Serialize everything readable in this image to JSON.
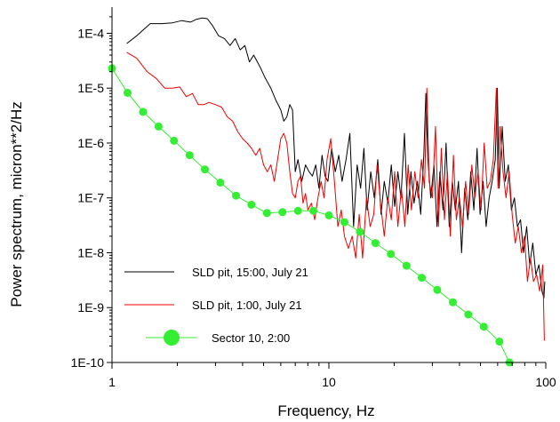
{
  "chart_data": {
    "type": "line",
    "title": "",
    "xlabel": "Frequency, Hz",
    "ylabel": "Power spectrum, micron**2/Hz",
    "xscale": "log",
    "yscale": "log",
    "xlim": [
      1,
      100
    ],
    "ylim": [
      1e-10,
      0.0003
    ],
    "x_ticks": [
      {
        "value": 1,
        "label": "1"
      },
      {
        "value": 10,
        "label": "10"
      },
      {
        "value": 100,
        "label": "100"
      }
    ],
    "y_ticks": [
      {
        "value": 0.0001,
        "label": "1E-4"
      },
      {
        "value": 1e-05,
        "label": "1E-5"
      },
      {
        "value": 1e-06,
        "label": "1E-6"
      },
      {
        "value": 1e-07,
        "label": "1E-7"
      },
      {
        "value": 1e-08,
        "label": "1E-8"
      },
      {
        "value": 1e-09,
        "label": "1E-9"
      },
      {
        "value": 1e-10,
        "label": "1E-10"
      }
    ],
    "grid": false,
    "legend": "bottom-left",
    "series": [
      {
        "name": "SLD pit, 15:00, July 21",
        "color": "#000000",
        "marker": "none",
        "x": [
          1.17,
          1.3,
          1.5,
          1.7,
          1.9,
          2.1,
          2.3,
          2.45,
          2.6,
          2.75,
          2.9,
          3.1,
          3.3,
          3.5,
          3.7,
          3.9,
          4.1,
          4.3,
          4.5,
          4.8,
          5.1,
          5.4,
          5.7,
          6.0,
          6.2,
          6.4,
          6.6,
          6.8,
          7.0,
          7.2,
          7.5,
          7.8,
          8.1,
          8.4,
          8.7,
          9.0,
          9.3,
          9.6,
          9.9,
          10.3,
          10.7,
          11.1,
          11.5,
          12.0,
          12.5,
          13.0,
          13.5,
          14.0,
          14.5,
          15.0,
          15.6,
          16.2,
          16.8,
          17.4,
          18.0,
          18.7,
          19.4,
          20.1,
          20.8,
          21.5,
          22.3,
          23.1,
          23.9,
          24.7,
          25.6,
          26.5,
          27.4,
          28.0,
          28.6,
          29.5,
          30.5,
          31.5,
          32.5,
          33.6,
          34.7,
          35.9,
          37.1,
          38.3,
          39.6,
          40.9,
          42.3,
          43.7,
          45.1,
          46.6,
          48.2,
          49.8,
          51.4,
          53.1,
          54.8,
          56.6,
          58.5,
          59.8,
          61.0,
          63.0,
          65.0,
          67.2,
          69.4,
          71.7,
          74.0,
          76.5,
          79.0,
          81.6,
          84.3,
          87.1,
          90.0,
          93.0,
          96.0,
          98.0,
          99.0
        ],
        "y": [
          6.5e-05,
          9e-05,
          0.00015,
          0.00015,
          0.000155,
          0.00017,
          0.00016,
          0.00018,
          0.00019,
          0.000185,
          0.00014,
          9e-05,
          8e-05,
          6e-05,
          8e-05,
          5e-05,
          6e-05,
          3e-05,
          4e-05,
          2.5e-05,
          1.5e-05,
          1e-05,
          6e-06,
          4e-06,
          2.5e-06,
          3e-06,
          5e-06,
          4e-06,
          3e-07,
          5e-07,
          2e-07,
          4e-07,
          3e-07,
          2.5e-07,
          4e-07,
          1.5e-07,
          6e-07,
          2.5e-07,
          2e-07,
          8e-07,
          3e-07,
          6e-07,
          2e-07,
          5e-07,
          1.5e-06,
          3e-08,
          4e-07,
          1.5e-07,
          8e-07,
          6e-08,
          3e-07,
          1e-07,
          5e-07,
          5e-08,
          2e-07,
          8e-08,
          4e-07,
          7e-08,
          3e-07,
          1e-07,
          1.5e-06,
          5e-08,
          3e-07,
          8e-08,
          2e-07,
          5e-08,
          6e-07,
          8e-06,
          5e-07,
          1e-07,
          4e-07,
          3e-08,
          3e-07,
          6e-08,
          1e-06,
          3e-08,
          2e-07,
          6e-08,
          2e-07,
          1e-08,
          1.5e-07,
          4e-08,
          3e-07,
          6e-08,
          8e-07,
          5e-08,
          2e-07,
          3e-08,
          1e-07,
          2e-07,
          5e-07,
          1e-05,
          1.5e-07,
          2e-06,
          2e-07,
          4e-07,
          6e-08,
          1e-07,
          3e-08,
          4e-08,
          1e-08,
          3e-08,
          6e-09,
          1.5e-08,
          4e-09,
          6e-09,
          2e-09,
          1.5e-09,
          3e-09
        ]
      },
      {
        "name": "SLD pit, 1:00, July 21",
        "color": "#ee0000",
        "marker": "none",
        "x": [
          1.17,
          1.3,
          1.45,
          1.6,
          1.75,
          1.9,
          2.05,
          2.2,
          2.35,
          2.5,
          2.65,
          2.8,
          3.0,
          3.2,
          3.4,
          3.6,
          3.8,
          4.0,
          4.2,
          4.4,
          4.6,
          4.8,
          5.0,
          5.2,
          5.4,
          5.6,
          5.8,
          6.0,
          6.2,
          6.4,
          6.6,
          6.8,
          7.0,
          7.2,
          7.4,
          7.6,
          7.8,
          8.0,
          8.3,
          8.6,
          8.9,
          9.2,
          9.5,
          9.8,
          10.2,
          10.6,
          11.0,
          11.4,
          11.8,
          12.3,
          12.8,
          13.3,
          13.8,
          14.3,
          14.9,
          15.5,
          16.1,
          16.7,
          17.3,
          18.0,
          18.7,
          19.4,
          20.1,
          20.8,
          21.6,
          22.4,
          23.2,
          24.0,
          24.9,
          25.8,
          26.7,
          27.6,
          28.3,
          29.0,
          30.0,
          31.0,
          32.0,
          33.0,
          34.1,
          35.2,
          36.3,
          37.5,
          38.7,
          40.0,
          41.3,
          42.7,
          44.1,
          45.6,
          47.1,
          48.7,
          50.3,
          52.0,
          53.7,
          55.5,
          57.3,
          59.2,
          60.2,
          61.5,
          63.5,
          65.6,
          67.8,
          70.0,
          72.3,
          74.7,
          77.2,
          79.7,
          82.3,
          85.0,
          87.8,
          90.7,
          93.7,
          96.8,
          98.5
        ],
        "y": [
          4.5e-05,
          3.5e-05,
          2e-05,
          1.5e-05,
          1e-05,
          1e-05,
          1.05e-05,
          7e-06,
          8e-06,
          5e-06,
          5e-06,
          5.5e-06,
          5e-06,
          4.5e-06,
          3e-06,
          2.5e-06,
          1.6e-06,
          1.2e-06,
          1e-06,
          8e-07,
          6e-07,
          8e-07,
          4e-07,
          3e-07,
          4e-07,
          2e-07,
          5e-07,
          1.2e-06,
          1.5e-06,
          1e-06,
          3e-07,
          1.2e-07,
          1e-07,
          2e-07,
          2.5e-07,
          8e-08,
          1.2e-07,
          6e-08,
          8e-08,
          4e-08,
          1e-07,
          2e-07,
          1e-07,
          5e-07,
          1.2e-06,
          2e-07,
          3e-08,
          6e-08,
          2e-08,
          1.2e-08,
          2e-08,
          8e-09,
          5e-08,
          8e-09,
          1e-07,
          3e-08,
          5e-08,
          4e-07,
          8e-08,
          2e-08,
          1e-07,
          4e-08,
          3e-07,
          3e-08,
          1.5e-07,
          3e-08,
          4e-07,
          6e-08,
          3e-07,
          1e-07,
          5e-07,
          1.5e-07,
          1e-05,
          2e-07,
          1e-07,
          2e-06,
          3e-08,
          8e-07,
          4e-08,
          3e-07,
          2e-08,
          6e-07,
          4e-08,
          1e-07,
          3e-08,
          2e-07,
          5e-08,
          4e-07,
          1e-07,
          3e-07,
          6e-08,
          1e-06,
          1.5e-07,
          2e-07,
          5e-07,
          1e-05,
          1.5e-07,
          2e-06,
          3e-07,
          1e-07,
          3e-07,
          5e-08,
          1.5e-08,
          3e-08,
          1e-08,
          2e-08,
          3e-09,
          8e-09,
          3e-09,
          4e-09,
          2e-09,
          6e-09,
          2.5e-10
        ]
      },
      {
        "name": "Sector 10, 2:00",
        "color": "#33ee33",
        "marker": "circle",
        "x": [
          1.0,
          1.18,
          1.39,
          1.64,
          1.93,
          2.28,
          2.68,
          3.16,
          3.73,
          4.39,
          5.18,
          6.11,
          7.2,
          8.48,
          10.0,
          11.8,
          13.9,
          16.4,
          19.3,
          22.8,
          26.8,
          31.6,
          37.3,
          43.9,
          51.8,
          61.1,
          68.0
        ],
        "y": [
          2.3e-05,
          8.2e-06,
          3.7e-06,
          2e-06,
          1.1e-06,
          6e-07,
          3.3e-07,
          1.9e-07,
          1.1e-07,
          7.5e-08,
          5.3e-08,
          5.5e-08,
          5.8e-08,
          5.8e-08,
          4.8e-08,
          3.6e-08,
          2.4e-08,
          1.5e-08,
          9.5e-09,
          5.8e-09,
          3.5e-09,
          2.1e-09,
          1.25e-09,
          7.5e-10,
          4.5e-10,
          2.4e-10,
          1e-10
        ]
      }
    ]
  }
}
